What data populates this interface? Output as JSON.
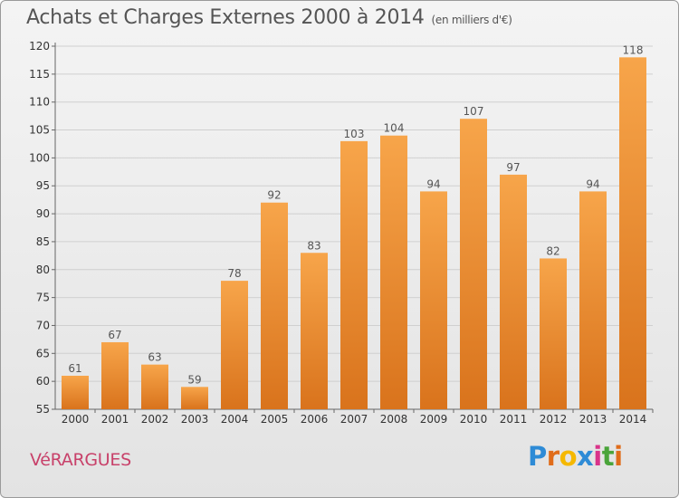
{
  "header": {
    "title": "Achats et Charges Externes 2000 à 2014",
    "unit": "(en milliers d'€)"
  },
  "footer": {
    "commune": "VéRARGUES",
    "brand": "Proxiti",
    "brand_letters": [
      "P",
      "r",
      "o",
      "x",
      "i",
      "t",
      "i"
    ],
    "brand_colors": [
      "#2e8bd6",
      "#e06c1a",
      "#f5b800",
      "#2e8bd6",
      "#d9348a",
      "#4aa43a",
      "#e06c1a"
    ]
  },
  "colors": {
    "bar_light": "#f7a54a",
    "bar_dark": "#d9731c",
    "grid": "#d0d0d0",
    "axis": "#666666"
  },
  "chart_data": {
    "type": "bar",
    "title": "Achats et Charges Externes 2000 à 2014",
    "ylabel": "(en milliers d'€)",
    "xlabel": "",
    "categories": [
      "2000",
      "2001",
      "2002",
      "2003",
      "2004",
      "2005",
      "2006",
      "2007",
      "2008",
      "2009",
      "2010",
      "2011",
      "2012",
      "2013",
      "2014"
    ],
    "values": [
      61,
      67,
      63,
      59,
      78,
      92,
      83,
      103,
      104,
      94,
      107,
      97,
      82,
      94,
      118
    ],
    "ylim": [
      55,
      120
    ],
    "yticks": [
      55,
      60,
      65,
      70,
      75,
      80,
      85,
      90,
      95,
      100,
      105,
      110,
      115,
      120
    ],
    "grid": true
  }
}
